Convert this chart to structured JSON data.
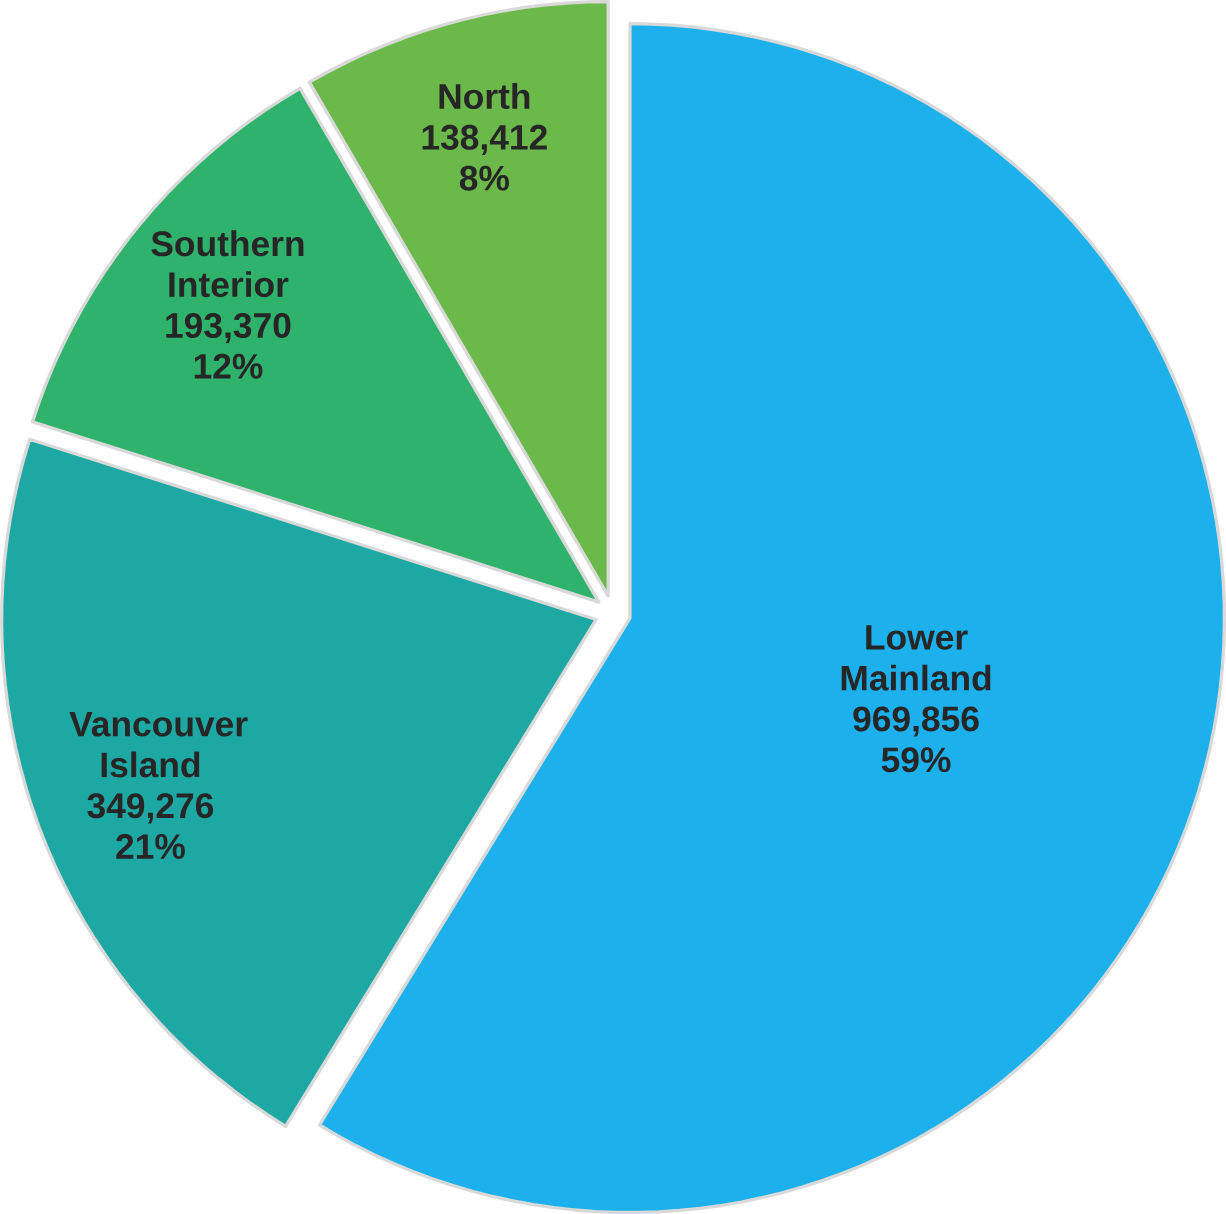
{
  "chart_data": {
    "type": "pie",
    "categories": [
      "Lower Mainland",
      "Vancouver Island",
      "Southern Interior",
      "North"
    ],
    "values": [
      969856,
      349276,
      193370,
      138412
    ],
    "value_labels": [
      "969,856 59%",
      "349,276 21%",
      "193,370 12%",
      "138,412 8%"
    ],
    "colors": [
      "#1cb1ec",
      "#1ea8a4",
      "#2fb26c",
      "#6cb94b"
    ]
  }
}
